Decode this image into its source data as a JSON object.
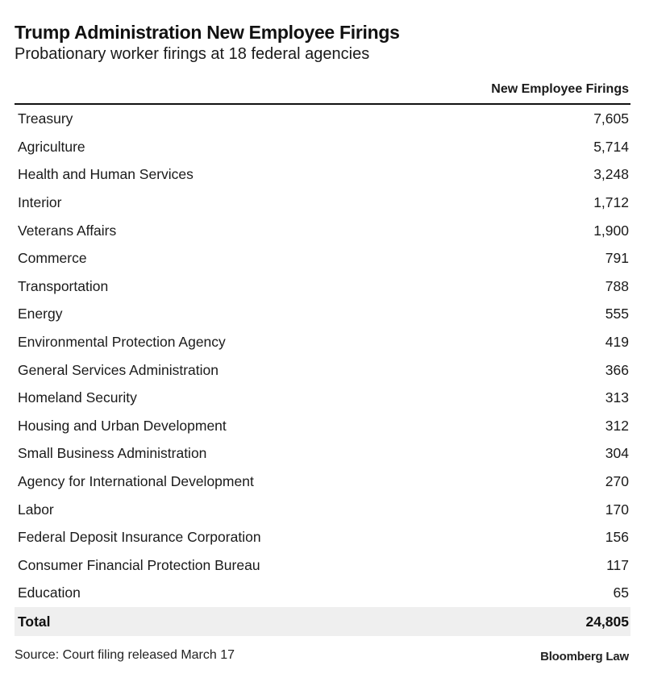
{
  "chart_data": {
    "type": "table",
    "title": "Trump Administration New Employee Firings",
    "subtitle": "Probationary worker firings at 18 federal agencies",
    "column_header": "New Employee Firings",
    "rows": [
      {
        "agency": "Treasury",
        "value": "7,605"
      },
      {
        "agency": "Agriculture",
        "value": "5,714"
      },
      {
        "agency": "Health and Human Services",
        "value": "3,248"
      },
      {
        "agency": "Interior",
        "value": "1,712"
      },
      {
        "agency": "Veterans Affairs",
        "value": "1,900"
      },
      {
        "agency": "Commerce",
        "value": "791"
      },
      {
        "agency": "Transportation",
        "value": "788"
      },
      {
        "agency": "Energy",
        "value": "555"
      },
      {
        "agency": "Environmental Protection Agency",
        "value": "419"
      },
      {
        "agency": "General Services Administration",
        "value": "366"
      },
      {
        "agency": "Homeland Security",
        "value": "313"
      },
      {
        "agency": "Housing and Urban Development",
        "value": "312"
      },
      {
        "agency": "Small Business Administration",
        "value": "304"
      },
      {
        "agency": "Agency for International Development",
        "value": "270"
      },
      {
        "agency": "Labor",
        "value": "170"
      },
      {
        "agency": "Federal Deposit Insurance Corporation",
        "value": "156"
      },
      {
        "agency": "Consumer Financial Protection Bureau",
        "value": "117"
      },
      {
        "agency": "Education",
        "value": "65"
      }
    ],
    "total": {
      "label": "Total",
      "value": "24,805"
    },
    "source": "Source: Court filing released March 17",
    "brand": "Bloomberg Law"
  }
}
